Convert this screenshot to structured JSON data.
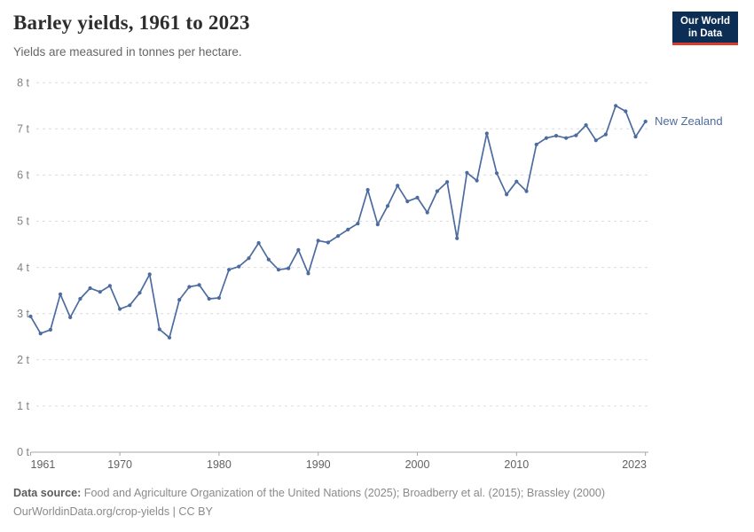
{
  "header": {
    "title": "Barley yields, 1961 to 2023",
    "subtitle": "Yields are measured in tonnes per hectare."
  },
  "logo": {
    "line1": "Our World",
    "line2": "in Data",
    "bg_color": "#0d2e54",
    "accent_color": "#d93a2b",
    "text_color": "#ffffff"
  },
  "footer": {
    "source_label": "Data source:",
    "source_text": "Food and Agriculture Organization of the United Nations (2025); Broadberry et al. (2015); Brassley (2000)",
    "line2": "OurWorldinData.org/crop-yields | CC BY"
  },
  "chart_data": {
    "type": "line",
    "title": "Barley yields, 1961 to 2023",
    "subtitle": "Yields are measured in tonnes per hectare.",
    "xlabel": "",
    "ylabel": "",
    "y_unit": " t",
    "xlim": [
      1961,
      2023
    ],
    "ylim": [
      0,
      8
    ],
    "xticks": [
      1961,
      1970,
      1980,
      1990,
      2000,
      2010,
      2023
    ],
    "yticks": [
      0,
      1,
      2,
      3,
      4,
      5,
      6,
      7,
      8
    ],
    "grid": "horizontal-dashed",
    "legend_position": "label-right-of-last-point",
    "series": [
      {
        "name": "New Zealand",
        "color": "#4c6b9f",
        "years": [
          1961,
          1962,
          1963,
          1964,
          1965,
          1966,
          1967,
          1968,
          1969,
          1970,
          1971,
          1972,
          1973,
          1974,
          1975,
          1976,
          1977,
          1978,
          1979,
          1980,
          1981,
          1982,
          1983,
          1984,
          1985,
          1986,
          1987,
          1988,
          1989,
          1990,
          1991,
          1992,
          1993,
          1994,
          1995,
          1996,
          1997,
          1998,
          1999,
          2000,
          2001,
          2002,
          2003,
          2004,
          2005,
          2006,
          2007,
          2008,
          2009,
          2010,
          2011,
          2012,
          2013,
          2014,
          2015,
          2016,
          2017,
          2018,
          2019,
          2020,
          2021,
          2022,
          2023
        ],
        "values": [
          2.94,
          2.57,
          2.65,
          3.42,
          2.92,
          3.32,
          3.55,
          3.47,
          3.6,
          3.1,
          3.18,
          3.45,
          3.85,
          2.66,
          2.48,
          3.3,
          3.58,
          3.62,
          3.32,
          3.34,
          3.95,
          4.02,
          4.2,
          4.53,
          4.17,
          3.95,
          3.98,
          4.38,
          3.87,
          4.58,
          4.54,
          4.68,
          4.82,
          4.95,
          5.68,
          4.93,
          5.33,
          5.77,
          5.43,
          5.51,
          5.19,
          5.65,
          5.85,
          4.63,
          6.05,
          5.88,
          6.9,
          6.04,
          5.58,
          5.86,
          5.65,
          6.66,
          6.8,
          6.85,
          6.8,
          6.86,
          7.08,
          6.75,
          6.88,
          7.5,
          7.38,
          6.83,
          7.16
        ]
      }
    ]
  }
}
